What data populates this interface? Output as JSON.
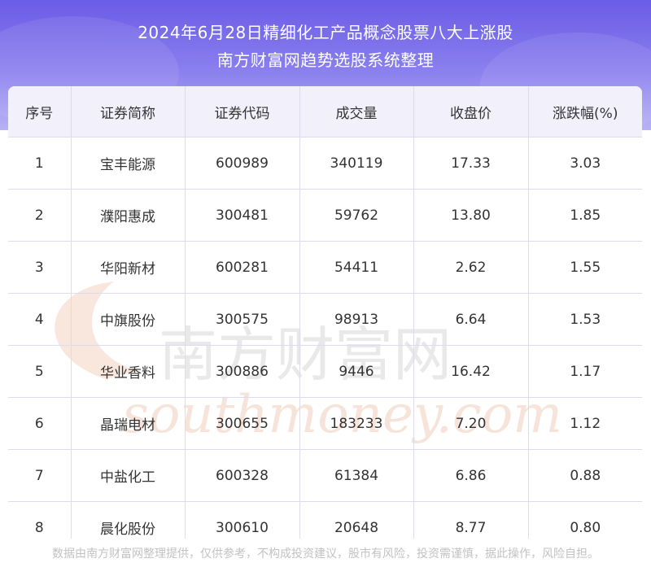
{
  "header": {
    "title_line1": "2024年6月28日精细化工产品概念股票八大上涨股",
    "title_line2": "南方财富网趋势选股系统整理"
  },
  "table": {
    "columns": [
      "序号",
      "证券简称",
      "证券代码",
      "成交量",
      "收盘价",
      "涨跌幅(%)"
    ],
    "rows": [
      [
        "1",
        "宝丰能源",
        "600989",
        "340119",
        "17.33",
        "3.03"
      ],
      [
        "2",
        "濮阳惠成",
        "300481",
        "59762",
        "13.80",
        "1.85"
      ],
      [
        "3",
        "华阳新材",
        "600281",
        "54411",
        "2.62",
        "1.55"
      ],
      [
        "4",
        "中旗股份",
        "300575",
        "98913",
        "6.64",
        "1.53"
      ],
      [
        "5",
        "华业香料",
        "300886",
        "9446",
        "16.42",
        "1.17"
      ],
      [
        "6",
        "晶瑞电材",
        "300655",
        "183233",
        "7.20",
        "1.12"
      ],
      [
        "7",
        "中盐化工",
        "600328",
        "61384",
        "6.86",
        "0.88"
      ],
      [
        "8",
        "晨化股份",
        "300610",
        "20648",
        "8.77",
        "0.80"
      ]
    ]
  },
  "watermark": {
    "cn_text": "南方财富网",
    "en_text": "southmoney.com"
  },
  "footer": {
    "disclaimer": "数据由南方财富网整理提供，仅供参考，不构成投资建议，股市有风险，投资需谨慎，据此操作，风险自担。"
  },
  "colors": {
    "header_top": "#6b5ce6",
    "header_bottom": "#b7b2f5",
    "table_header_bg": "#f2f1fb",
    "grid": "#dcdcec"
  }
}
